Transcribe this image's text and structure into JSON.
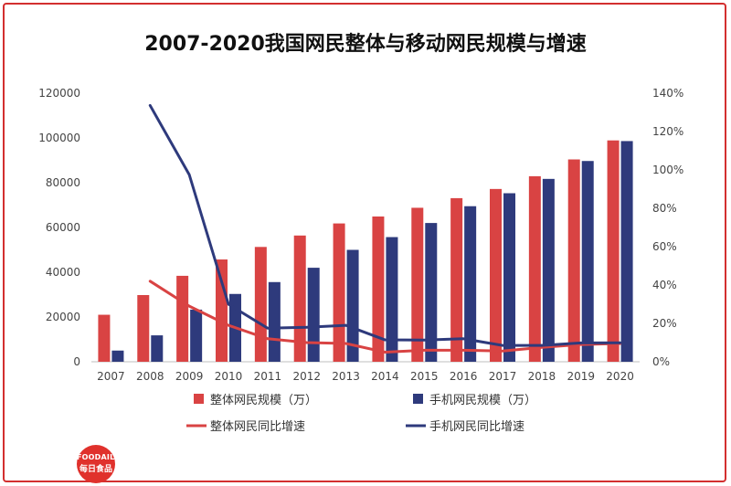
{
  "title": "2007-2020我国网民整体与移动网民规模与增速",
  "logo": {
    "line1": "FOODAILY",
    "line2": "每日食品"
  },
  "colors": {
    "red": "#d94343",
    "navy": "#2e3a7c",
    "frame": "#d32f2f"
  },
  "chart_data": {
    "type": "bar",
    "title": "2007-2020我国网民整体与移动网民规模与增速",
    "categories": [
      "2007",
      "2008",
      "2009",
      "2010",
      "2011",
      "2012",
      "2013",
      "2014",
      "2015",
      "2016",
      "2017",
      "2018",
      "2019",
      "2020"
    ],
    "series": [
      {
        "name": "整体网民规模（万）",
        "type": "bar",
        "axis": "left",
        "color": "#d94343",
        "values": [
          21000,
          29800,
          38400,
          45700,
          51300,
          56400,
          61800,
          64900,
          68800,
          73100,
          77200,
          82900,
          90400,
          98900
        ]
      },
      {
        "name": "手机网民规模（万）",
        "type": "bar",
        "axis": "left",
        "color": "#2e3a7c",
        "values": [
          5000,
          11800,
          23300,
          30300,
          35600,
          42000,
          50000,
          55700,
          62000,
          69500,
          75300,
          81700,
          89700,
          98600
        ]
      },
      {
        "name": "整体网民同比增速",
        "type": "line",
        "axis": "right",
        "color": "#d94343",
        "values": [
          null,
          42,
          29,
          19,
          12,
          10,
          9.5,
          5,
          6,
          6,
          5.6,
          7.5,
          9,
          9.5
        ]
      },
      {
        "name": "手机网民同比增速",
        "type": "line",
        "axis": "right",
        "color": "#2e3a7c",
        "values": [
          null,
          133.6,
          97.5,
          30,
          17.5,
          18,
          19,
          11.4,
          11.3,
          12,
          8.5,
          8.5,
          9.8,
          9.9
        ]
      }
    ],
    "y_left": {
      "min": 0,
      "max": 120000,
      "ticks": [
        "0",
        "20000",
        "40000",
        "60000",
        "80000",
        "100000",
        "120000"
      ]
    },
    "y_right": {
      "min": 0,
      "max": 140,
      "ticks": [
        "0%",
        "20%",
        "40%",
        "60%",
        "80%",
        "100%",
        "120%",
        "140%"
      ]
    },
    "grid": false,
    "legend_position": "bottom"
  }
}
